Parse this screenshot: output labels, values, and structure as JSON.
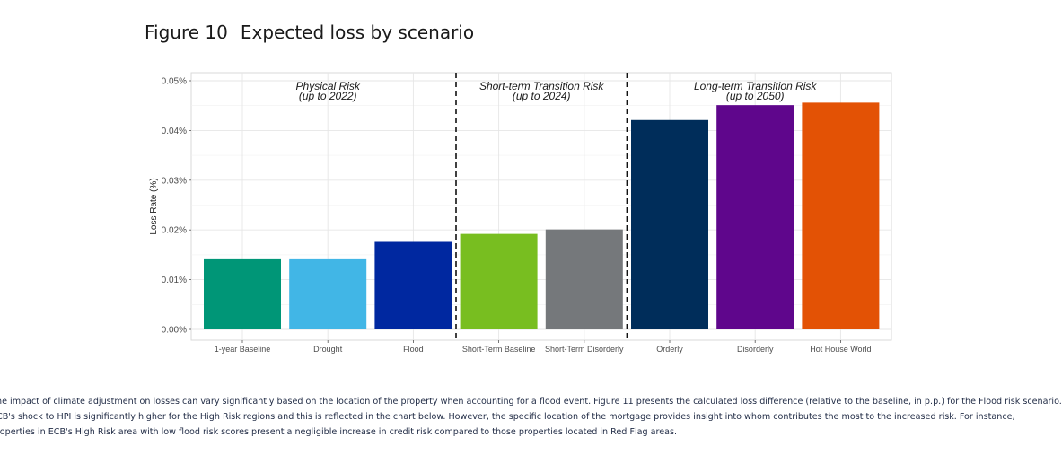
{
  "figure": {
    "number": "Figure 10",
    "title": "Expected loss by scenario"
  },
  "chart_data": {
    "type": "bar",
    "ylabel": "Loss Rate (%)",
    "ylim": [
      0,
      0.05
    ],
    "yticks": [
      "0.00%",
      "0.01%",
      "0.02%",
      "0.03%",
      "0.04%",
      "0.05%"
    ],
    "ytick_values": [
      0,
      0.01,
      0.02,
      0.03,
      0.04,
      0.05
    ],
    "grid": true,
    "categories": [
      "1-year Baseline",
      "Drought",
      "Flood",
      "Short-Term Baseline",
      "Short-Term Disorderly",
      "Orderly",
      "Disorderly",
      "Hot House World"
    ],
    "values": [
      0.0141,
      0.0141,
      0.0176,
      0.0192,
      0.0201,
      0.0421,
      0.0451,
      0.0456
    ],
    "colors": [
      "#009677",
      "#41b6e6",
      "#0028a0",
      "#78be20",
      "#75787b",
      "#002d5a",
      "#5f068c",
      "#e35205"
    ],
    "groups": [
      {
        "label": "Physical Risk",
        "sublabel": "(up to 2022)",
        "start": 0,
        "end": 2
      },
      {
        "label": "Short-term Transition Risk",
        "sublabel": "(up to 2024)",
        "start": 3,
        "end": 4
      },
      {
        "label": "Long-term Transition Risk",
        "sublabel": "(up to 2050)",
        "start": 5,
        "end": 7
      }
    ]
  },
  "caption": {
    "lines": [
      "he impact of climate adjustment on losses can vary significantly based on the location of the property when accounting for a flood event. Figure 11 presents the calculated loss difference (relative to the baseline, in p.p.) for the Flood risk scenario.",
      "CB's shock to HPI is significantly higher for the High Risk regions and this is reflected in the chart below. However, the specific location of the mortgage provides insight into whom contributes the most to the increased risk. For instance,",
      "roperties in ECB's High Risk area with low flood risk scores present a negligible increase in credit risk compared to those properties located in Red Flag areas."
    ]
  }
}
